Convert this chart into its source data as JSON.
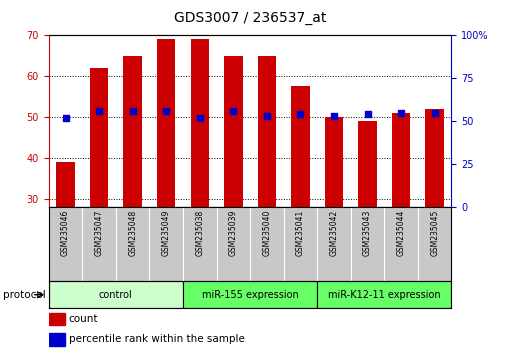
{
  "title": "GDS3007 / 236537_at",
  "samples": [
    "GSM235046",
    "GSM235047",
    "GSM235048",
    "GSM235049",
    "GSM235038",
    "GSM235039",
    "GSM235040",
    "GSM235041",
    "GSM235042",
    "GSM235043",
    "GSM235044",
    "GSM235045"
  ],
  "bar_heights": [
    39,
    62,
    65,
    69,
    69,
    65,
    65,
    57.5,
    50,
    49,
    51,
    52
  ],
  "percentile_values": [
    52,
    56,
    56,
    56,
    52,
    56,
    53,
    54,
    53,
    54,
    55,
    55
  ],
  "bar_color": "#cc0000",
  "dot_color": "#0000cc",
  "ylim_left": [
    28,
    70
  ],
  "ylim_right": [
    0,
    100
  ],
  "yticks_left": [
    30,
    40,
    50,
    60,
    70
  ],
  "yticks_right": [
    0,
    25,
    50,
    75,
    100
  ],
  "ytick_labels_right": [
    "0",
    "25",
    "50",
    "75",
    "100%"
  ],
  "group_boundaries": [
    [
      0,
      4,
      "#ccffcc",
      "control"
    ],
    [
      4,
      8,
      "#66ff66",
      "miR-155 expression"
    ],
    [
      8,
      12,
      "#66ff66",
      "miR-K12-11 expression"
    ]
  ],
  "protocol_label": "protocol",
  "legend_count_label": "count",
  "legend_pct_label": "percentile rank within the sample",
  "bar_width": 0.55,
  "background_color": "#ffffff",
  "left_axis_color": "#cc0000",
  "right_axis_color": "#0000cc",
  "xtick_bg_color": "#c8c8c8",
  "title_fontsize": 10,
  "tick_fontsize": 7,
  "sample_fontsize": 5.5,
  "legend_fontsize": 7.5,
  "protocol_fontsize": 7.5,
  "group_fontsize": 7
}
